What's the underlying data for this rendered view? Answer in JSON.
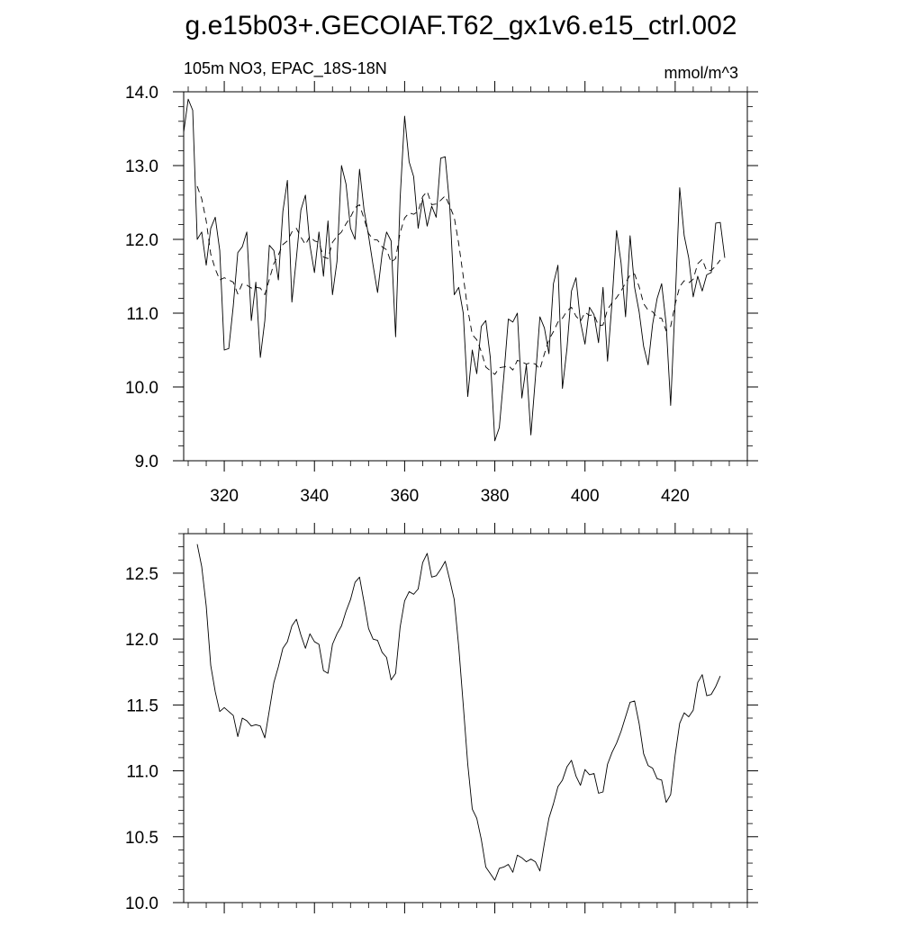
{
  "title": "g.e15b03+.GECOIAF.T62_gx1v6.e15_ctrl.002",
  "chart_data": [
    {
      "type": "line",
      "left_label": "105m NO3, EPAC_18S-18N",
      "right_label": "mmol/m^3",
      "xlim": [
        311,
        436
      ],
      "ylim": [
        9.0,
        14.0
      ],
      "xticks": [
        320,
        340,
        360,
        380,
        400,
        420
      ],
      "xtick_labels": [
        "320",
        "340",
        "360",
        "380",
        "400",
        "420"
      ],
      "yticks": [
        9.0,
        10.0,
        11.0,
        12.0,
        13.0,
        14.0
      ],
      "ytick_labels": [
        "9.0",
        "10.0",
        "11.0",
        "12.0",
        "13.0",
        "14.0"
      ],
      "grid": false,
      "series": [
        {
          "style": "solid",
          "x0": 311,
          "step": 1,
          "values": [
            13.45,
            13.9,
            13.75,
            12.0,
            12.1,
            11.65,
            12.15,
            12.3,
            11.85,
            10.5,
            10.52,
            11.1,
            11.82,
            11.9,
            12.1,
            10.9,
            11.42,
            10.4,
            10.9,
            11.92,
            11.85,
            11.45,
            12.38,
            12.8,
            11.15,
            11.75,
            12.4,
            12.6,
            11.92,
            11.55,
            12.1,
            11.5,
            12.25,
            11.25,
            11.7,
            13.0,
            12.75,
            12.15,
            12.0,
            12.95,
            12.4,
            12.05,
            11.65,
            11.28,
            11.8,
            12.1,
            11.98,
            10.68,
            12.55,
            13.67,
            13.05,
            12.85,
            12.15,
            12.55,
            12.18,
            12.45,
            12.3,
            13.1,
            13.12,
            12.45,
            11.25,
            11.35,
            11.0,
            9.87,
            10.5,
            10.18,
            10.82,
            10.9,
            10.4,
            9.27,
            9.45,
            10.15,
            10.92,
            10.88,
            11.0,
            9.85,
            10.3,
            9.35,
            10.12,
            10.95,
            10.8,
            10.45,
            11.4,
            11.65,
            9.98,
            10.52,
            11.3,
            11.48,
            10.88,
            10.58,
            11.08,
            10.98,
            10.6,
            11.35,
            10.35,
            11.15,
            12.12,
            11.68,
            10.95,
            12.05,
            11.35,
            11.02,
            10.55,
            10.3,
            10.85,
            11.2,
            11.4,
            10.85,
            9.75,
            11.15,
            12.7,
            12.05,
            11.75,
            11.22,
            11.5,
            11.3,
            11.52,
            11.55,
            12.22,
            12.23,
            11.75
          ]
        },
        {
          "style": "dashed",
          "x0": 314,
          "step": 1,
          "values": [
            12.72,
            12.55,
            12.25,
            11.8,
            11.6,
            11.45,
            11.48,
            11.45,
            11.42,
            11.26,
            11.4,
            11.38,
            11.34,
            11.35,
            11.34,
            11.25,
            11.46,
            11.67,
            11.79,
            11.93,
            11.98,
            12.1,
            12.15,
            12.03,
            11.93,
            12.04,
            11.98,
            11.96,
            11.76,
            11.74,
            11.96,
            12.04,
            12.1,
            12.21,
            12.3,
            12.43,
            12.47,
            12.28,
            12.08,
            12.0,
            11.99,
            11.9,
            11.86,
            11.69,
            11.74,
            12.09,
            12.29,
            12.36,
            12.34,
            12.38,
            12.58,
            12.65,
            12.47,
            12.48,
            12.53,
            12.59,
            12.45,
            12.3,
            11.94,
            11.5,
            11.05,
            10.71,
            10.64,
            10.48,
            10.27,
            10.22,
            10.17,
            10.26,
            10.27,
            10.29,
            10.23,
            10.36,
            10.34,
            10.31,
            10.33,
            10.31,
            10.24,
            10.45,
            10.64,
            10.75,
            10.88,
            10.93,
            11.03,
            11.08,
            10.96,
            10.89,
            11.01,
            10.97,
            10.98,
            10.83,
            10.84,
            11.05,
            11.14,
            11.21,
            11.3,
            11.41,
            11.52,
            11.53,
            11.36,
            11.13,
            11.04,
            11.02,
            10.94,
            10.93,
            10.76,
            10.82,
            11.12,
            11.36,
            11.44,
            11.41,
            11.46,
            11.67,
            11.73,
            11.57,
            11.58,
            11.64,
            11.72
          ]
        }
      ]
    },
    {
      "type": "line",
      "xlim": [
        311,
        436
      ],
      "ylim": [
        10.0,
        12.8
      ],
      "xticks": [
        320,
        340,
        360,
        380,
        400,
        420
      ],
      "yticks": [
        10.0,
        10.5,
        11.0,
        11.5,
        12.0,
        12.5
      ],
      "ytick_labels": [
        "10.0",
        "10.5",
        "11.0",
        "11.5",
        "12.0",
        "12.5"
      ],
      "grid": false,
      "series": [
        {
          "style": "solid",
          "x0": 314,
          "step": 1,
          "values": [
            12.72,
            12.55,
            12.25,
            11.8,
            11.6,
            11.45,
            11.48,
            11.45,
            11.42,
            11.26,
            11.4,
            11.38,
            11.34,
            11.35,
            11.34,
            11.25,
            11.46,
            11.67,
            11.79,
            11.93,
            11.98,
            12.1,
            12.15,
            12.03,
            11.93,
            12.04,
            11.98,
            11.96,
            11.76,
            11.74,
            11.96,
            12.04,
            12.1,
            12.21,
            12.3,
            12.43,
            12.47,
            12.28,
            12.08,
            12.0,
            11.99,
            11.9,
            11.86,
            11.69,
            11.74,
            12.09,
            12.29,
            12.36,
            12.34,
            12.38,
            12.58,
            12.65,
            12.47,
            12.48,
            12.53,
            12.59,
            12.45,
            12.3,
            11.94,
            11.5,
            11.05,
            10.71,
            10.64,
            10.48,
            10.27,
            10.22,
            10.17,
            10.26,
            10.27,
            10.29,
            10.23,
            10.36,
            10.34,
            10.31,
            10.33,
            10.31,
            10.24,
            10.45,
            10.64,
            10.75,
            10.88,
            10.93,
            11.03,
            11.08,
            10.96,
            10.89,
            11.01,
            10.97,
            10.98,
            10.83,
            10.84,
            11.05,
            11.14,
            11.21,
            11.3,
            11.41,
            11.52,
            11.53,
            11.36,
            11.13,
            11.04,
            11.02,
            10.94,
            10.93,
            10.76,
            10.82,
            11.12,
            11.36,
            11.44,
            11.41,
            11.46,
            11.67,
            11.73,
            11.57,
            11.58,
            11.64,
            11.72
          ]
        }
      ]
    }
  ]
}
